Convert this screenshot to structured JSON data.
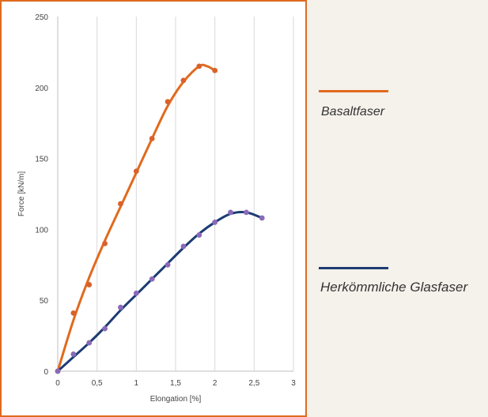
{
  "chart_data": {
    "type": "scatter",
    "xlabel": "Elongation [%]",
    "ylabel": "Force [kN/m]",
    "xlim": [
      0,
      3
    ],
    "ylim": [
      0,
      250
    ],
    "x_ticks": [
      "0",
      "0,5",
      "1",
      "1,5",
      "2",
      "2,5",
      "3"
    ],
    "y_ticks": [
      "0",
      "50",
      "100",
      "150",
      "200",
      "250"
    ],
    "grid": "vertical",
    "legend_position": "right",
    "series": [
      {
        "name": "Basaltfaser",
        "color": "#e06a1f",
        "marker_color": "#d9622b",
        "points": [
          [
            0,
            0
          ],
          [
            0.2,
            41
          ],
          [
            0.4,
            61
          ],
          [
            0.6,
            90
          ],
          [
            0.8,
            118
          ],
          [
            1.0,
            141
          ],
          [
            1.2,
            164
          ],
          [
            1.4,
            190
          ],
          [
            1.6,
            205
          ],
          [
            1.8,
            215
          ],
          [
            2.0,
            212
          ]
        ],
        "trend": [
          [
            0,
            0
          ],
          [
            0.2,
            36
          ],
          [
            0.4,
            66
          ],
          [
            0.6,
            92
          ],
          [
            0.8,
            116
          ],
          [
            1.0,
            140
          ],
          [
            1.2,
            164
          ],
          [
            1.4,
            187
          ],
          [
            1.6,
            204
          ],
          [
            1.8,
            215
          ],
          [
            1.9,
            215
          ],
          [
            2.0,
            212
          ]
        ]
      },
      {
        "name": "Herkömmliche Glasfaser",
        "color": "#1c3b73",
        "marker_color": "#8a6ab8",
        "points": [
          [
            0,
            0
          ],
          [
            0.2,
            12
          ],
          [
            0.4,
            20
          ],
          [
            0.6,
            30
          ],
          [
            0.8,
            45
          ],
          [
            1.0,
            55
          ],
          [
            1.2,
            65
          ],
          [
            1.4,
            75
          ],
          [
            1.6,
            88
          ],
          [
            1.8,
            96
          ],
          [
            2.0,
            105
          ],
          [
            2.2,
            112
          ],
          [
            2.4,
            112
          ],
          [
            2.6,
            108
          ]
        ],
        "trend": [
          [
            0,
            0
          ],
          [
            0.2,
            10
          ],
          [
            0.4,
            20
          ],
          [
            0.6,
            31
          ],
          [
            0.8,
            43
          ],
          [
            1.0,
            54
          ],
          [
            1.2,
            65
          ],
          [
            1.4,
            76
          ],
          [
            1.6,
            87
          ],
          [
            1.8,
            97
          ],
          [
            2.0,
            105
          ],
          [
            2.2,
            111
          ],
          [
            2.4,
            112
          ],
          [
            2.6,
            108
          ]
        ]
      }
    ]
  }
}
